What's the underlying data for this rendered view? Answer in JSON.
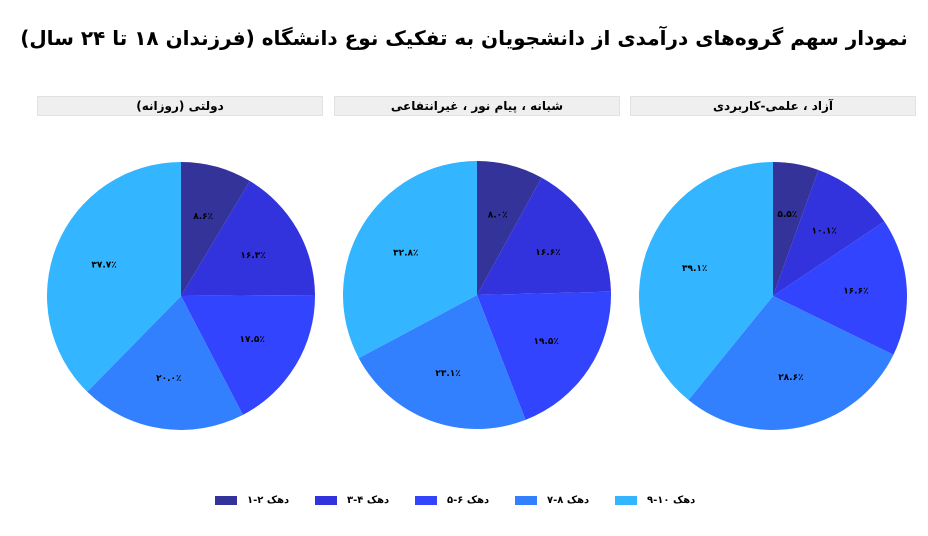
{
  "title": "نمودار سهم گروه‌های درآمدی از دانشجویان به تفکیک نوع دانشگاه (فرزندان ۱۸ تا ۲۴ سال)",
  "colors": {
    "decile_1_2": "#333399",
    "decile_3_4": "#3333DD",
    "decile_5_6": "#3344FF",
    "decile_7_8": "#3380FF",
    "decile_9_10": "#33B5FF",
    "header_bg": "#efefef"
  },
  "panels": [
    {
      "header": "دولتی (روزانه)",
      "labels": [
        "۸.۶٪",
        "۱۶.۳٪",
        "۱۷.۵٪",
        "۲۰.۰٪",
        "۳۷.۷٪"
      ]
    },
    {
      "header": "شبانه ، پیام نور ، غیرانتفاعی",
      "labels": [
        "۸.۰٪",
        "۱۶.۶٪",
        "۱۹.۵٪",
        "۲۳.۱٪",
        "۳۲.۸٪"
      ]
    },
    {
      "header": "آزاد ، علمی-کاربردی",
      "labels": [
        "۵.۵٪",
        "۱۰.۱٪",
        "۱۶.۶٪",
        "۲۸.۶٪",
        "۳۹.۱٪"
      ]
    }
  ],
  "legend": [
    {
      "label": "دهک ۲-۱",
      "color": "#333399"
    },
    {
      "label": "دهک ۴-۳",
      "color": "#3333DD"
    },
    {
      "label": "دهک ۶-۵",
      "color": "#3344FF"
    },
    {
      "label": "دهک ۸-۷",
      "color": "#3380FF"
    },
    {
      "label": "دهک ۱۰-۹",
      "color": "#33B5FF"
    }
  ],
  "chart_data": [
    {
      "type": "pie",
      "title": "دولتی (روزانه)",
      "categories": [
        "دهک ۲-۱",
        "دهک ۴-۳",
        "دهک ۶-۵",
        "دهک ۸-۷",
        "دهک ۱۰-۹"
      ],
      "values": [
        8.6,
        16.3,
        17.5,
        20.0,
        37.7
      ],
      "unit": "%",
      "start_angle": "12 o'clock, clockwise",
      "legend_position": "bottom"
    },
    {
      "type": "pie",
      "title": "شبانه ، پیام نور ، غیرانتفاعی",
      "categories": [
        "دهک ۲-۱",
        "دهک ۴-۳",
        "دهک ۶-۵",
        "دهک ۸-۷",
        "دهک ۱۰-۹"
      ],
      "values": [
        8.0,
        16.6,
        19.5,
        23.1,
        32.8
      ],
      "unit": "%",
      "start_angle": "12 o'clock, clockwise",
      "legend_position": "bottom"
    },
    {
      "type": "pie",
      "title": "آزاد ، علمی-کاربردی",
      "categories": [
        "دهک ۲-۱",
        "دهک ۴-۳",
        "دهک ۶-۵",
        "دهک ۸-۷",
        "دهک ۱۰-۹"
      ],
      "values": [
        5.5,
        10.1,
        16.6,
        28.6,
        39.1
      ],
      "unit": "%",
      "start_angle": "12 o'clock, clockwise",
      "legend_position": "bottom"
    }
  ]
}
